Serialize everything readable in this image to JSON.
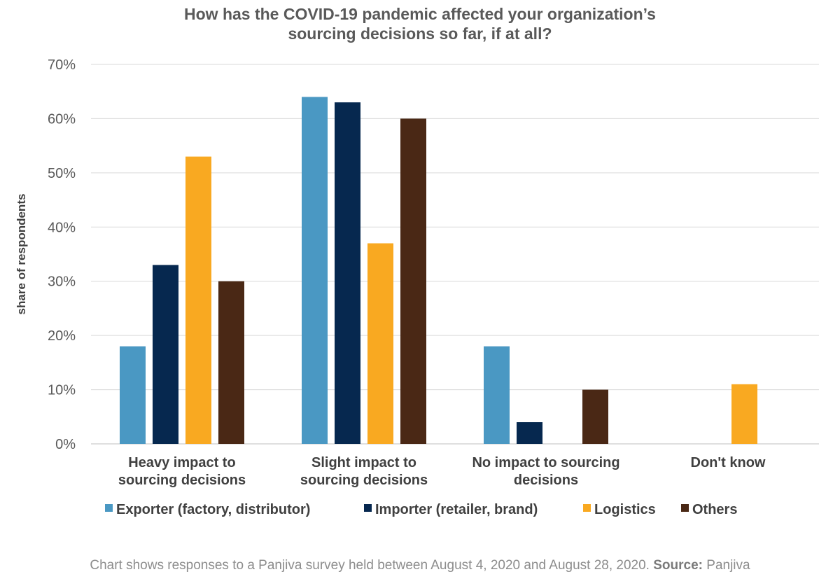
{
  "chart_data": {
    "type": "bar",
    "title_lines": [
      "How has the COVID-19 pandemic affected your organization’s",
      "sourcing decisions so far, if at all?"
    ],
    "ylabel": "share of respondents",
    "ylim": [
      0,
      70
    ],
    "y_ticks": [
      0,
      10,
      20,
      30,
      40,
      50,
      60,
      70
    ],
    "y_tick_labels": [
      "0%",
      "10%",
      "20%",
      "30%",
      "40%",
      "50%",
      "60%",
      "70%"
    ],
    "grid": true,
    "legend_position": "bottom",
    "categories": [
      [
        "Heavy impact to",
        "sourcing decisions"
      ],
      [
        "Slight impact to",
        "sourcing decisions"
      ],
      [
        "No impact to sourcing",
        "decisions"
      ],
      [
        "Don't know"
      ]
    ],
    "series": [
      {
        "name": "Exporter (factory, distributor)",
        "color": "#4a98c3",
        "values": [
          18,
          64,
          18,
          0
        ]
      },
      {
        "name": "Importer (retailer, brand)",
        "color": "#06284f",
        "values": [
          33,
          63,
          4,
          0
        ]
      },
      {
        "name": "Logistics",
        "color": "#f9a921",
        "values": [
          53,
          37,
          0,
          11
        ]
      },
      {
        "name": "Others",
        "color": "#4a2815",
        "values": [
          30,
          60,
          10,
          0
        ]
      }
    ]
  },
  "footnote": {
    "text": "Chart shows responses to a Panjiva survey held between August 4, 2020 and August 28, 2020.",
    "source_label": "Source:",
    "source_value": "Panjiva"
  }
}
